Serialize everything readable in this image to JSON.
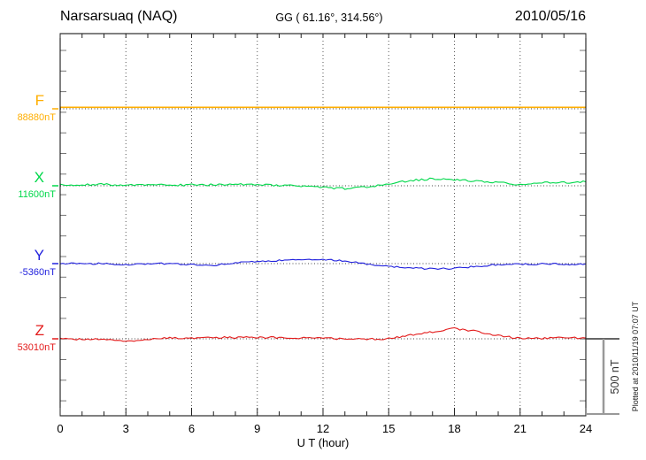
{
  "header": {
    "station": "Narsarsuaq (NAQ)",
    "coordinates": "GG ( 61.16°, 314.56°)",
    "date": "2010/05/16"
  },
  "plot_note": "Plotted at 2010/11/19 07:07 UT",
  "scale_bar": {
    "label": "500 nT",
    "span_nT": 500
  },
  "x_axis": {
    "label": "U T (hour)",
    "tick_labels": [
      "0",
      "3",
      "6",
      "9",
      "12",
      "15",
      "18",
      "21",
      "24"
    ],
    "minor_tick_hours": 1,
    "range_hours": [
      0,
      24
    ]
  },
  "chart_data": {
    "type": "line",
    "title": "Narsarsuaq (NAQ) magnetogram 2010/05/16",
    "xlabel": "U T (hour)",
    "xlim": [
      0,
      24
    ],
    "grid": "dotted vertical lines every 3 hours; dotted horizontal baseline per trace",
    "legend_position": "left margin, one colored label per trace",
    "scale": {
      "label": "500 nT",
      "nT": 500
    },
    "x_hours": [
      0,
      1,
      2,
      3,
      4,
      5,
      6,
      7,
      8,
      9,
      10,
      11,
      12,
      13,
      14,
      15,
      16,
      17,
      18,
      19,
      20,
      21,
      22,
      23,
      24
    ],
    "series": [
      {
        "name": "F",
        "baseline_label": "88880nT",
        "baseline_nT": 88880,
        "color": "#FFAE00",
        "values": [
          88890,
          88890,
          88890,
          88890,
          88890,
          88890,
          88890,
          88890,
          88890,
          88890,
          88890,
          88890,
          88890,
          88890,
          88890,
          88890,
          88890,
          88890,
          88890,
          88890,
          88890,
          88890,
          88890,
          88890,
          88890
        ]
      },
      {
        "name": "X",
        "baseline_label": "11600nT",
        "baseline_nT": 11600,
        "color": "#00D84A",
        "values": [
          11606,
          11606,
          11609,
          11603,
          11609,
          11603,
          11606,
          11606,
          11609,
          11606,
          11603,
          11600,
          11588,
          11582,
          11591,
          11612,
          11635,
          11647,
          11641,
          11629,
          11624,
          11606,
          11624,
          11621,
          11626
        ]
      },
      {
        "name": "Y",
        "baseline_label": "-5360nT",
        "baseline_nT": -5360,
        "color": "#2222DD",
        "values": [
          -5360,
          -5360,
          -5360,
          -5366,
          -5360,
          -5360,
          -5366,
          -5372,
          -5354,
          -5348,
          -5339,
          -5334,
          -5331,
          -5342,
          -5363,
          -5378,
          -5389,
          -5395,
          -5392,
          -5378,
          -5366,
          -5363,
          -5363,
          -5363,
          -5366
        ]
      },
      {
        "name": "Z",
        "baseline_label": "53010nT",
        "baseline_nT": 53010,
        "color": "#E31A1A",
        "values": [
          53010,
          53007,
          53010,
          52989,
          53007,
          53016,
          53016,
          53019,
          53019,
          53019,
          53019,
          53016,
          53013,
          53010,
          53007,
          53010,
          53034,
          53057,
          53078,
          53060,
          53031,
          53013,
          53013,
          53022,
          53013
        ]
      }
    ]
  }
}
